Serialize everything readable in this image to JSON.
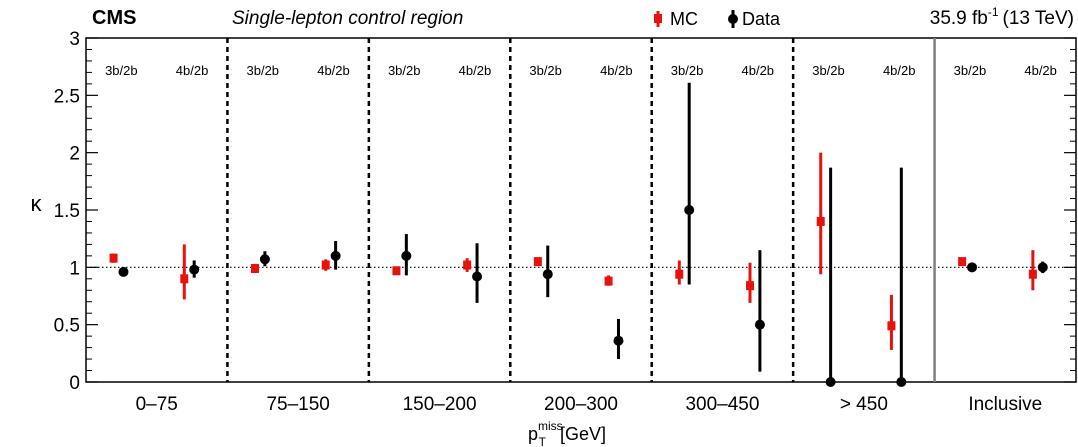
{
  "chart_data": {
    "type": "scatter",
    "header": {
      "experiment": "CMS",
      "region": "Single-lepton control region",
      "lumi_value": "35.9 fb",
      "lumi_exp": "-1",
      "energy": "(13 TeV)"
    },
    "legend": {
      "placement": "top-center",
      "entries": [
        "MC",
        "Data"
      ]
    },
    "ylabel": "κ",
    "xlabel_base": "p",
    "xlabel_sup": "miss",
    "xlabel_sub": "T",
    "xlabel_unit": "[GeV]",
    "ylim": [
      0,
      3
    ],
    "yticks": [
      "0",
      "0.5",
      "1",
      "1.5",
      "2",
      "2.5",
      "3"
    ],
    "reference_line": 1,
    "categories": [
      "0–75",
      "75–150",
      "150–200",
      "200–300",
      "300–450",
      "> 450",
      "Inclusive"
    ],
    "subcategories": [
      "3b/2b",
      "4b/2b"
    ],
    "colors": {
      "MC": "#e8120c",
      "Data": "#000000"
    },
    "series": [
      {
        "name": "MC",
        "points": [
          {
            "bin": 0,
            "sub": 0,
            "y": 1.08,
            "lo": 1.04,
            "hi": 1.12
          },
          {
            "bin": 0,
            "sub": 1,
            "y": 0.9,
            "lo": 0.72,
            "hi": 1.2
          },
          {
            "bin": 1,
            "sub": 0,
            "y": 0.99,
            "lo": 0.95,
            "hi": 1.03
          },
          {
            "bin": 1,
            "sub": 1,
            "y": 1.02,
            "lo": 0.97,
            "hi": 1.07
          },
          {
            "bin": 2,
            "sub": 0,
            "y": 0.97,
            "lo": 0.94,
            "hi": 1.0
          },
          {
            "bin": 2,
            "sub": 1,
            "y": 1.02,
            "lo": 0.96,
            "hi": 1.08
          },
          {
            "bin": 3,
            "sub": 0,
            "y": 1.05,
            "lo": 1.02,
            "hi": 1.08
          },
          {
            "bin": 3,
            "sub": 1,
            "y": 0.88,
            "lo": 0.84,
            "hi": 0.93
          },
          {
            "bin": 4,
            "sub": 0,
            "y": 0.94,
            "lo": 0.85,
            "hi": 1.06
          },
          {
            "bin": 4,
            "sub": 1,
            "y": 0.84,
            "lo": 0.69,
            "hi": 1.04
          },
          {
            "bin": 5,
            "sub": 0,
            "y": 1.4,
            "lo": 0.94,
            "hi": 2.0
          },
          {
            "bin": 5,
            "sub": 1,
            "y": 0.49,
            "lo": 0.28,
            "hi": 0.76
          },
          {
            "bin": 6,
            "sub": 0,
            "y": 1.05,
            "lo": 1.04,
            "hi": 1.06
          },
          {
            "bin": 6,
            "sub": 1,
            "y": 0.94,
            "lo": 0.8,
            "hi": 1.15
          }
        ]
      },
      {
        "name": "Data",
        "points": [
          {
            "bin": 0,
            "sub": 0,
            "y": 0.96,
            "lo": 0.95,
            "hi": 0.97
          },
          {
            "bin": 0,
            "sub": 1,
            "y": 0.98,
            "lo": 0.91,
            "hi": 1.06
          },
          {
            "bin": 1,
            "sub": 0,
            "y": 1.07,
            "lo": 1.01,
            "hi": 1.14
          },
          {
            "bin": 1,
            "sub": 1,
            "y": 1.1,
            "lo": 0.98,
            "hi": 1.23
          },
          {
            "bin": 2,
            "sub": 0,
            "y": 1.1,
            "lo": 0.93,
            "hi": 1.29
          },
          {
            "bin": 2,
            "sub": 1,
            "y": 0.92,
            "lo": 0.69,
            "hi": 1.21
          },
          {
            "bin": 3,
            "sub": 0,
            "y": 0.94,
            "lo": 0.74,
            "hi": 1.19
          },
          {
            "bin": 3,
            "sub": 1,
            "y": 0.36,
            "lo": 0.2,
            "hi": 0.55
          },
          {
            "bin": 4,
            "sub": 0,
            "y": 1.5,
            "lo": 0.85,
            "hi": 2.61
          },
          {
            "bin": 4,
            "sub": 1,
            "y": 0.5,
            "lo": 0.09,
            "hi": 1.15
          },
          {
            "bin": 5,
            "sub": 0,
            "y": 0.0,
            "lo": 0.0,
            "hi": 1.87
          },
          {
            "bin": 5,
            "sub": 1,
            "y": 0.0,
            "lo": 0.0,
            "hi": 1.87
          },
          {
            "bin": 6,
            "sub": 0,
            "y": 1.0,
            "lo": 0.99,
            "hi": 1.01
          },
          {
            "bin": 6,
            "sub": 1,
            "y": 1.0,
            "lo": 0.95,
            "hi": 1.05
          }
        ]
      }
    ]
  }
}
